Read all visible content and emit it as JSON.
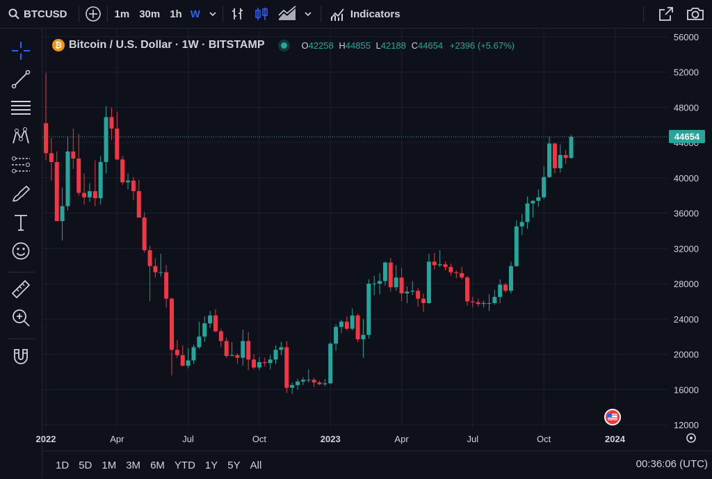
{
  "toolbar": {
    "symbol": "BTCUSD",
    "intervals": [
      "1m",
      "30m",
      "1h",
      "W"
    ],
    "indicators_label": "Indicators"
  },
  "legend": {
    "title": "Bitcoin / U.S. Dollar · 1W · BITSTAMP",
    "o_label": "O",
    "o": "42258",
    "h_label": "H",
    "h": "44855",
    "l_label": "L",
    "l": "42188",
    "c_label": "C",
    "c": "44654",
    "change": "+2396 (+5.67%)"
  },
  "price_badge": "44654",
  "ranges": [
    "1D",
    "5D",
    "1M",
    "3M",
    "6M",
    "YTD",
    "1Y",
    "5Y",
    "All"
  ],
  "clock": "00:36:06 (UTC)",
  "colors": {
    "up": "#26a69a",
    "down": "#f23645",
    "bg": "#0e1119",
    "grid": "#1c2030",
    "accent": "#2962ff"
  },
  "icons": [
    "search-icon",
    "add-icon",
    "bar-style-icon",
    "candles-icon",
    "area-icon",
    "chevron-down-icon",
    "indicators-icon",
    "fullscreen-icon",
    "camera-icon",
    "crosshair-icon",
    "trendline-icon",
    "fib-icon",
    "pattern-icon",
    "projection-icon",
    "brush-icon",
    "text-icon",
    "emoji-icon",
    "ruler-icon",
    "zoom-icon",
    "magnet-icon",
    "settings-icon",
    "us-flag-icon"
  ],
  "chart_data": {
    "type": "candlestick",
    "symbol": "BTCUSD",
    "timeframe": "1W",
    "y_ticks": [
      56000,
      52000,
      48000,
      44000,
      40000,
      36000,
      32000,
      28000,
      24000,
      20000,
      16000,
      12000
    ],
    "y_range": [
      12000,
      56000
    ],
    "x_ticks": [
      "2022",
      "Apr",
      "Jul",
      "Oct",
      "2023",
      "Apr",
      "Jul",
      "Oct",
      "2024"
    ],
    "x_ticks_index": [
      0,
      13,
      26,
      39,
      52,
      65,
      78,
      91,
      104
    ],
    "last_price": 44654,
    "candles": [
      [
        46200,
        51900,
        42000,
        42800
      ],
      [
        42800,
        44500,
        39700,
        41800
      ],
      [
        41800,
        43000,
        35500,
        35100
      ],
      [
        35100,
        38900,
        32900,
        36800
      ],
      [
        36800,
        44700,
        36300,
        43000
      ],
      [
        43000,
        45600,
        41000,
        42200
      ],
      [
        42200,
        45000,
        38000,
        38300
      ],
      [
        38300,
        40500,
        37000,
        37800
      ],
      [
        37800,
        39400,
        37300,
        38500
      ],
      [
        38500,
        42000,
        36800,
        37700
      ],
      [
        37700,
        42500,
        37000,
        41800
      ],
      [
        41800,
        48100,
        40500,
        46900
      ],
      [
        46900,
        48000,
        44300,
        45600
      ],
      [
        45600,
        47500,
        42000,
        42100
      ],
      [
        42100,
        42500,
        39200,
        39500
      ],
      [
        39500,
        40500,
        38700,
        39700
      ],
      [
        39700,
        40100,
        37500,
        38500
      ],
      [
        38500,
        39800,
        35500,
        35500
      ],
      [
        35500,
        36100,
        31500,
        31800
      ],
      [
        31800,
        32300,
        26000,
        30000
      ],
      [
        30000,
        30900,
        28700,
        29300
      ],
      [
        29300,
        31400,
        28800,
        29300
      ],
      [
        29300,
        30100,
        25300,
        26300
      ],
      [
        26300,
        26400,
        17600,
        20500
      ],
      [
        20500,
        21600,
        19600,
        19900
      ],
      [
        19900,
        21000,
        18600,
        18700
      ],
      [
        18700,
        20700,
        18400,
        19300
      ],
      [
        19300,
        21100,
        18900,
        20800
      ],
      [
        20800,
        23700,
        20600,
        22000
      ],
      [
        22000,
        24300,
        21400,
        23500
      ],
      [
        23500,
        24900,
        23000,
        24400
      ],
      [
        24400,
        25100,
        22500,
        22600
      ],
      [
        22600,
        22900,
        20800,
        21500
      ],
      [
        21500,
        21900,
        19600,
        19800
      ],
      [
        19800,
        21400,
        19800,
        19900
      ],
      [
        19900,
        20100,
        18900,
        19600
      ],
      [
        19600,
        22800,
        18700,
        21500
      ],
      [
        21500,
        22500,
        18200,
        19400
      ],
      [
        19400,
        20000,
        18300,
        18500
      ],
      [
        18500,
        19700,
        18200,
        19100
      ],
      [
        19100,
        19600,
        18600,
        19000
      ],
      [
        19000,
        19900,
        18300,
        19400
      ],
      [
        19400,
        21000,
        18900,
        20500
      ],
      [
        20500,
        21400,
        19900,
        20800
      ],
      [
        20800,
        21500,
        15600,
        16200
      ],
      [
        16200,
        16800,
        15500,
        16500
      ],
      [
        16500,
        17200,
        16000,
        16900
      ],
      [
        16900,
        17400,
        16500,
        17100
      ],
      [
        17100,
        18300,
        16800,
        17100
      ],
      [
        17100,
        17300,
        16300,
        16800
      ],
      [
        16800,
        17000,
        16500,
        16600
      ],
      [
        16600,
        17200,
        16400,
        16700
      ],
      [
        16700,
        21400,
        16600,
        21200
      ],
      [
        21200,
        23400,
        20400,
        23100
      ],
      [
        23100,
        23900,
        22400,
        23700
      ],
      [
        23700,
        24300,
        22700,
        22900
      ],
      [
        22900,
        25200,
        22700,
        24400
      ],
      [
        24400,
        24600,
        21400,
        21700
      ],
      [
        21700,
        24000,
        19600,
        22200
      ],
      [
        22200,
        28500,
        21800,
        28000
      ],
      [
        28000,
        28900,
        26700,
        28000
      ],
      [
        28000,
        29200,
        26800,
        28300
      ],
      [
        28300,
        30500,
        27800,
        30400
      ],
      [
        30400,
        30900,
        27100,
        27600
      ],
      [
        27600,
        30100,
        27200,
        28700
      ],
      [
        28700,
        29800,
        26000,
        26900
      ],
      [
        26900,
        27700,
        25800,
        27100
      ],
      [
        27100,
        28300,
        26700,
        27200
      ],
      [
        27200,
        27500,
        25400,
        26300
      ],
      [
        26300,
        26900,
        24800,
        25800
      ],
      [
        25800,
        31400,
        25700,
        30500
      ],
      [
        30500,
        31500,
        29600,
        30100
      ],
      [
        30100,
        31800,
        29900,
        30200
      ],
      [
        30200,
        30500,
        29500,
        29900
      ],
      [
        29900,
        30300,
        28900,
        29300
      ],
      [
        29300,
        29500,
        28600,
        29200
      ],
      [
        29200,
        29900,
        28500,
        28700
      ],
      [
        28700,
        28900,
        25500,
        26000
      ],
      [
        26000,
        26500,
        25300,
        25900
      ],
      [
        25900,
        26300,
        25400,
        25700
      ],
      [
        25700,
        26100,
        25300,
        25800
      ],
      [
        25800,
        26800,
        24900,
        25800
      ],
      [
        25800,
        27300,
        25600,
        26500
      ],
      [
        26500,
        28500,
        25800,
        27900
      ],
      [
        27900,
        28100,
        27000,
        27200
      ],
      [
        27200,
        30500,
        26900,
        30000
      ],
      [
        30000,
        35200,
        29900,
        34500
      ],
      [
        34500,
        35900,
        33500,
        35000
      ],
      [
        35000,
        37900,
        34200,
        37100
      ],
      [
        37100,
        37500,
        35500,
        37400
      ],
      [
        37400,
        38700,
        36700,
        37800
      ],
      [
        37800,
        41300,
        37600,
        40100
      ],
      [
        40100,
        44700,
        40000,
        43900
      ],
      [
        43900,
        44000,
        40500,
        41100
      ],
      [
        41100,
        43800,
        40600,
        42600
      ],
      [
        42600,
        43200,
        41600,
        42258
      ],
      [
        42258,
        44855,
        42188,
        44654
      ]
    ]
  }
}
